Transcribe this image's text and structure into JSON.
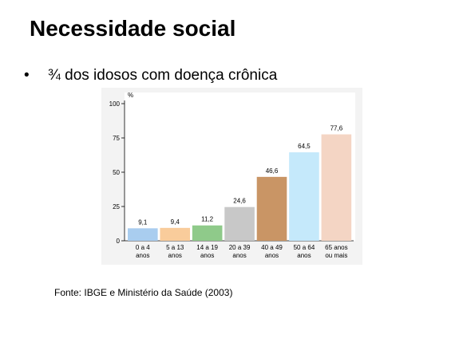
{
  "slide": {
    "title": "Necessidade social",
    "bullet": "¾ dos idosos com doença crônica",
    "source": "Fonte: IBGE e Ministério da Saúde (2003)"
  },
  "chart_data": {
    "type": "bar",
    "title": "",
    "xlabel": "",
    "ylabel": "%",
    "ylim": [
      0,
      100
    ],
    "yticks": [
      0,
      25,
      50,
      75,
      100
    ],
    "grid": false,
    "legend": "none",
    "categories": [
      [
        "0 a 4",
        "anos"
      ],
      [
        "5 a 13",
        "anos"
      ],
      [
        "14 a 19",
        "anos"
      ],
      [
        "20 a 39",
        "anos"
      ],
      [
        "40 a 49",
        "anos"
      ],
      [
        "50 a 64",
        "anos"
      ],
      [
        "65 anos",
        "ou mais"
      ]
    ],
    "values": [
      9.1,
      9.4,
      11.2,
      24.6,
      46.6,
      64.5,
      77.6
    ],
    "value_labels": [
      "9,1",
      "9,4",
      "11,2",
      "24,6",
      "46,6",
      "64,5",
      "77,6"
    ],
    "colors": [
      "#a9cdef",
      "#f9cc9b",
      "#8fca8a",
      "#c8c8c8",
      "#c99565",
      "#c5e9fb",
      "#f4d5c4"
    ]
  }
}
